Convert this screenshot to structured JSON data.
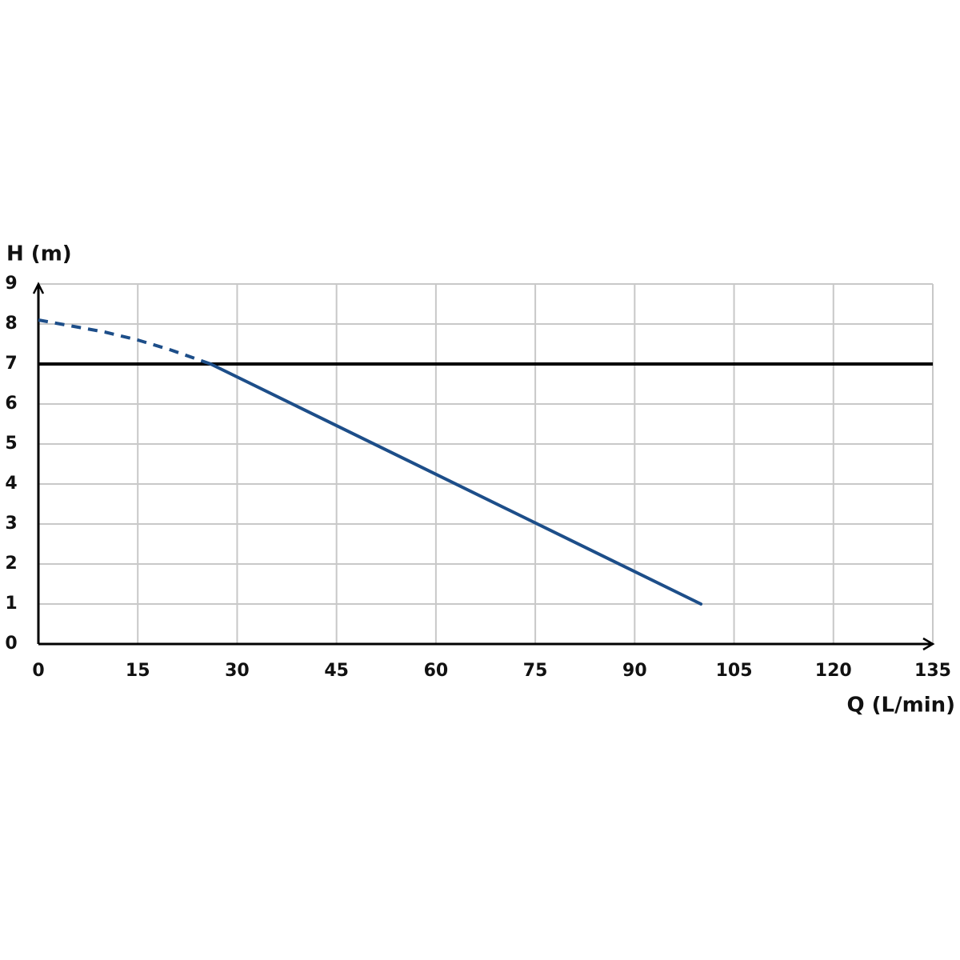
{
  "chart_data": {
    "type": "line",
    "y_label": "H (m)",
    "x_label": "Q (L/min)",
    "xlim": [
      0,
      135
    ],
    "xticks": [
      0,
      15,
      30,
      45,
      60,
      75,
      90,
      105,
      120,
      135
    ],
    "ylim": [
      0,
      9
    ],
    "yticks": [
      0,
      1,
      2,
      3,
      4,
      5,
      6,
      7,
      8,
      9
    ],
    "grid": true,
    "series": [
      {
        "color": "#1d4e89",
        "dashed": true,
        "x": [
          0,
          5,
          10,
          15,
          20,
          26
        ],
        "values": [
          8.1,
          7.95,
          7.8,
          7.6,
          7.35,
          7.0
        ]
      },
      {
        "color": "#1d4e89",
        "dashed": false,
        "x": [
          26,
          100
        ],
        "values": [
          7.0,
          1.0
        ]
      }
    ],
    "hline": {
      "value": 7,
      "color": "#000000"
    }
  }
}
